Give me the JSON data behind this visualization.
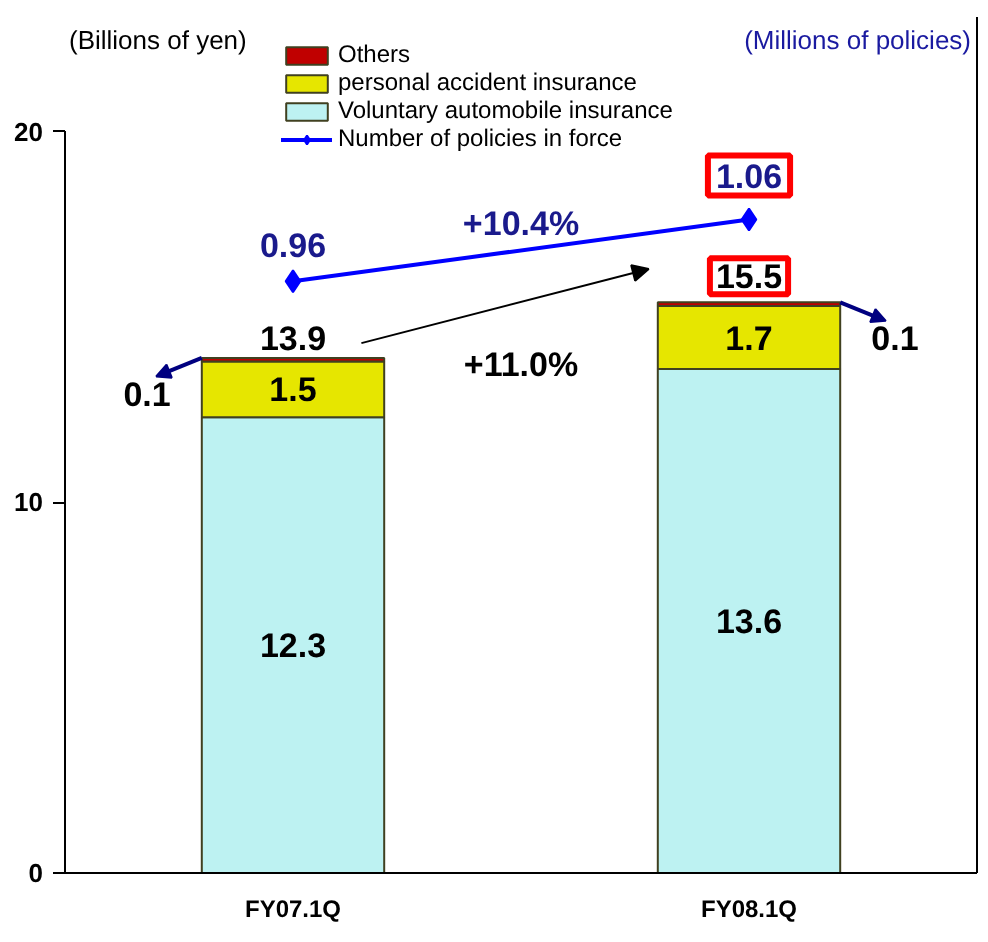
{
  "chart_data": {
    "type": "bar",
    "stacked": true,
    "ylabel": "(Billions of yen)",
    "y2label": "(Millions of policies)",
    "categories": [
      "FY07.1Q",
      "FY08.1Q"
    ],
    "series": [
      {
        "name": "Voluntary automobile insurance",
        "color": "#bdf2f2",
        "values": [
          12.3,
          13.6
        ]
      },
      {
        "name": "personal accident insurance",
        "color": "#e6e600",
        "values": [
          1.5,
          1.7
        ]
      },
      {
        "name": "Others",
        "color": "#c00000",
        "values": [
          0.1,
          0.1
        ]
      },
      {
        "name": "Number of policies in force",
        "type": "line",
        "axis": "y2",
        "color": "#0000ff",
        "marker": "diamond",
        "values": [
          0.96,
          1.06
        ],
        "value_labels": [
          "0.96",
          "1.06"
        ]
      }
    ],
    "totals": [
      "13.9",
      "15.5"
    ],
    "data_labels": true,
    "ylim": [
      0,
      20
    ],
    "yticks": [
      0,
      10,
      20
    ],
    "annotations": [
      "+10.4%",
      "+11.0%"
    ],
    "grid": false,
    "legend": "top"
  }
}
